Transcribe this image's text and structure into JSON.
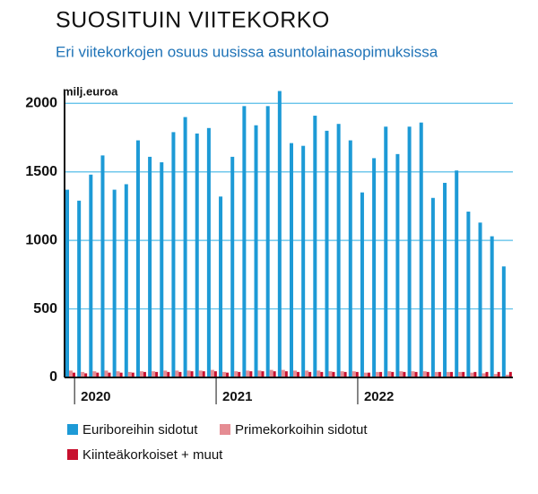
{
  "chart_data": {
    "type": "bar",
    "title": "SUOSITUIN VIITEKORKO",
    "subtitle": "Eri viitekorkojen osuus uusissa asuntolainasopimuksissa",
    "y_label": "milj.euroa",
    "categories": [
      null,
      "2020",
      null,
      null,
      null,
      null,
      null,
      null,
      null,
      null,
      null,
      null,
      null,
      "2021",
      null,
      null,
      null,
      null,
      null,
      null,
      null,
      null,
      null,
      null,
      null,
      "2022",
      null,
      null,
      null,
      null,
      null,
      null,
      null,
      null,
      null,
      null,
      null,
      null
    ],
    "series": [
      {
        "name": "Euriboreihin sidotut",
        "color": "#1d9ad6",
        "values": [
          1370,
          1290,
          1480,
          1620,
          1370,
          1410,
          1730,
          1610,
          1570,
          1790,
          1900,
          1780,
          1820,
          1320,
          1610,
          1980,
          1840,
          1980,
          2090,
          1710,
          1690,
          1910,
          1800,
          1850,
          1730,
          1350,
          1600,
          1830,
          1630,
          1830,
          1860,
          1310,
          1420,
          1510,
          1210,
          1130,
          1030,
          810
        ]
      },
      {
        "name": "Primekorkoihin sidotut",
        "color": "#e58c93",
        "values": [
          50,
          40,
          45,
          50,
          45,
          40,
          45,
          45,
          50,
          50,
          50,
          50,
          55,
          40,
          45,
          50,
          50,
          55,
          55,
          50,
          50,
          50,
          45,
          45,
          45,
          35,
          40,
          45,
          45,
          45,
          45,
          40,
          40,
          40,
          35,
          30,
          25,
          20
        ]
      },
      {
        "name": "Kiinteäkorkoiset + muut",
        "color": "#c8102e",
        "values": [
          35,
          30,
          35,
          35,
          35,
          35,
          40,
          40,
          40,
          40,
          45,
          45,
          45,
          35,
          40,
          45,
          45,
          45,
          45,
          40,
          40,
          40,
          40,
          40,
          40,
          35,
          40,
          40,
          40,
          40,
          40,
          40,
          40,
          40,
          40,
          40,
          40,
          40
        ]
      }
    ],
    "ylim": [
      0,
      2100
    ],
    "yticks": [
      0,
      500,
      1000,
      1500,
      2000
    ],
    "grid": true,
    "grid_color": "#55bde8"
  }
}
